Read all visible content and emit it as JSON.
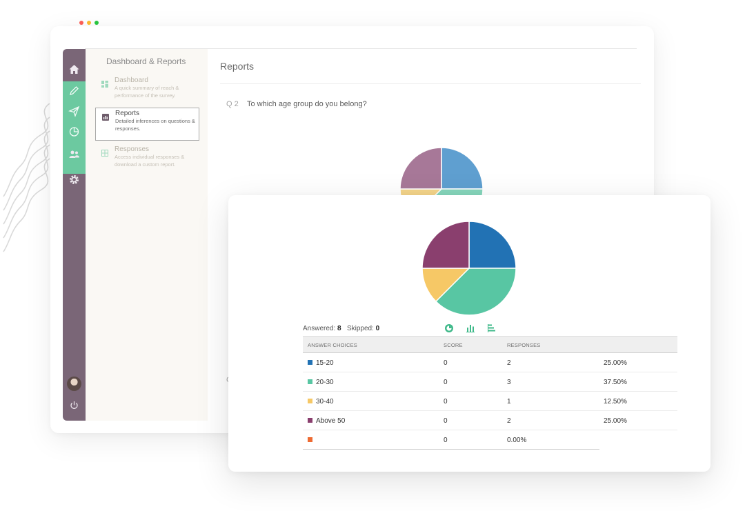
{
  "window_dots": [
    "#fe5f57",
    "#febc2e",
    "#28c840"
  ],
  "sidebar": {
    "icons": [
      "home-icon",
      "pencil-icon",
      "send-icon",
      "pie-chart-icon",
      "users-icon",
      "gear-icon",
      "power-icon"
    ]
  },
  "subnav": {
    "title": "Dashboard & Reports",
    "items": [
      {
        "icon": "dashboard-icon",
        "title": "Dashboard",
        "desc": "A quick summary of reach & performance of the survey."
      },
      {
        "icon": "reports-icon",
        "title": "Reports",
        "desc": "Detailed inferences on questions & responses."
      },
      {
        "icon": "table-icon",
        "title": "Responses",
        "desc": "Access individual responses & download a custom report."
      }
    ]
  },
  "main": {
    "title": "Reports",
    "question_number": "Q 2",
    "question_text": "To which age group do you belong?",
    "stub_letter": "C"
  },
  "results": {
    "answered_label": "Answered:",
    "answered_value": "8",
    "skipped_label": "Skipped:",
    "skipped_value": "0",
    "view_icons": [
      "pie-view-icon",
      "bar-view-icon",
      "horizontal-bar-view-icon"
    ],
    "accent": "#3fb98a",
    "columns": [
      "ANSWER CHOICES",
      "SCORE",
      "RESPONSES"
    ],
    "rows": [
      {
        "choice": "15-20",
        "color": "#2272b4",
        "score": "0",
        "responses": "2",
        "percent": "25.00%"
      },
      {
        "choice": "20-30",
        "color": "#58c6a3",
        "score": "0",
        "responses": "3",
        "percent": "37.50%"
      },
      {
        "choice": "30-40",
        "color": "#f6c866",
        "score": "0",
        "responses": "1",
        "percent": "12.50%"
      },
      {
        "choice": "Above 50",
        "color": "#8a3f6e",
        "score": "0",
        "responses": "2",
        "percent": "25.00%"
      },
      {
        "choice": "",
        "color": "#ee6b32",
        "score": "0",
        "responses": "0.00%",
        "percent": ""
      }
    ]
  },
  "chart_data": {
    "type": "pie",
    "categories": [
      "15-20",
      "20-30",
      "30-40",
      "Above 50"
    ],
    "values": [
      25.0,
      37.5,
      12.5,
      25.0
    ],
    "colors": [
      "#2272b4",
      "#58c6a3",
      "#f6c866",
      "#8a3f6e"
    ],
    "back_colors": [
      "#5f9fd0",
      "#86d6bc",
      "#f4d48a",
      "#a77898"
    ]
  }
}
